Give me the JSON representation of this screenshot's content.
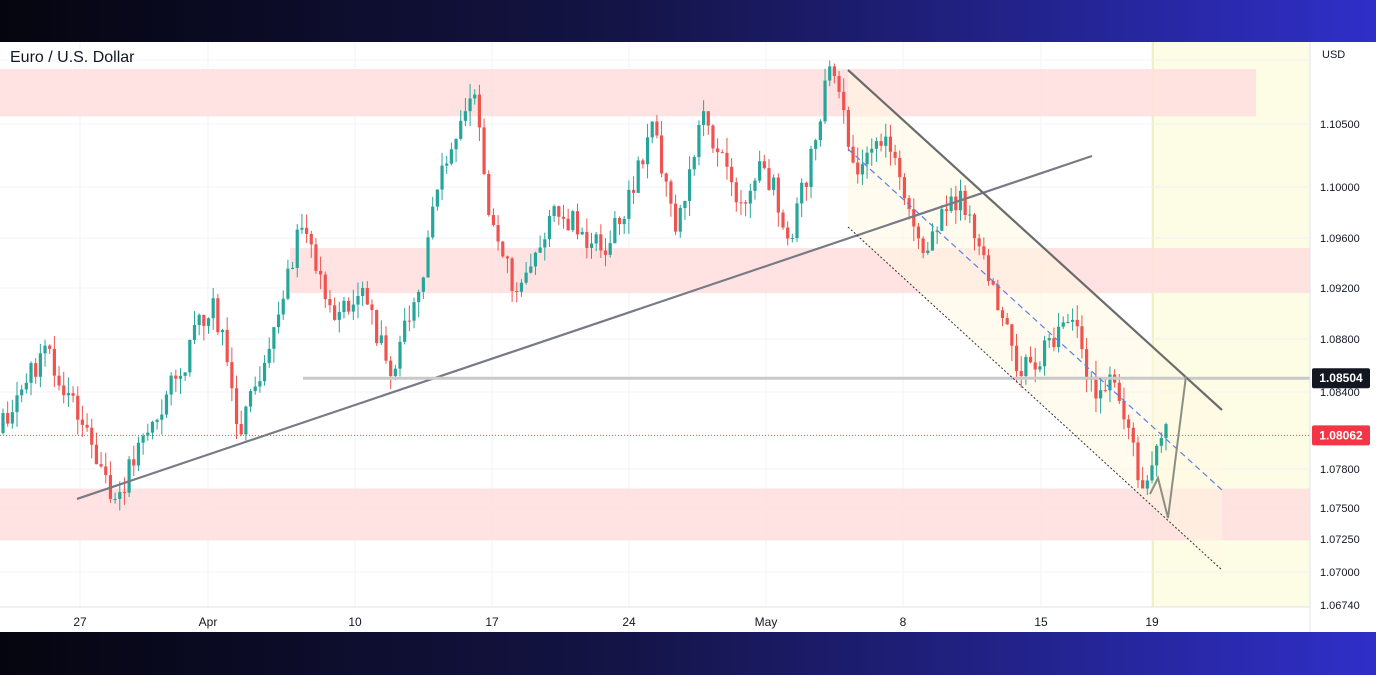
{
  "header": {
    "title": "Euro / U.S. Dollar",
    "currency": "USD"
  },
  "chart_data": {
    "type": "candlestick",
    "title": "Euro / U.S. Dollar",
    "y_unit": "USD",
    "ylim": [
      1.0674,
      1.1118
    ],
    "y_ticks": [
      "1.10500",
      "1.10000",
      "1.09600",
      "1.09200",
      "1.08800",
      "1.08400",
      "1.07800",
      "1.07500",
      "1.07250",
      "1.07000",
      "1.06740"
    ],
    "x_ticks": [
      "27",
      "Apr",
      "10",
      "17",
      "24",
      "May",
      "8",
      "15",
      "19"
    ],
    "current_price": "1.08062",
    "marked_level": "1.08504",
    "colors": {
      "up": "#26a69a",
      "down": "#ef5350",
      "zone": "#ffdede",
      "forecast": "#fdfde6",
      "channel": "#808080"
    },
    "zones": [
      {
        "from": 1.1056,
        "to": 1.1093
      },
      {
        "from": 1.0916,
        "to": 1.0952
      },
      {
        "from": 1.0724,
        "to": 1.0765
      }
    ],
    "candle_sets": [
      {
        "from": 1.0808,
        "to": 1.0875,
        "n": 10,
        "seed": 11
      },
      {
        "from": 1.0875,
        "to": 1.0782,
        "n": 12,
        "seed": 12
      },
      {
        "from": 1.0782,
        "to": 1.0757,
        "n": 3,
        "seed": 13
      },
      {
        "from": 1.0757,
        "to": 1.085,
        "n": 13,
        "seed": 14
      },
      {
        "from": 1.085,
        "to": 1.0912,
        "n": 8,
        "seed": 15
      },
      {
        "from": 1.0912,
        "to": 1.0807,
        "n": 6,
        "seed": 16
      },
      {
        "from": 1.0807,
        "to": 1.0968,
        "n": 13,
        "seed": 17
      },
      {
        "from": 1.0968,
        "to": 1.0895,
        "n": 7,
        "seed": 18
      },
      {
        "from": 1.0895,
        "to": 1.092,
        "n": 6,
        "seed": 19
      },
      {
        "from": 1.092,
        "to": 1.0852,
        "n": 6,
        "seed": 20
      },
      {
        "from": 1.0852,
        "to": 1.0917,
        "n": 6,
        "seed": 21
      },
      {
        "from": 1.0917,
        "to": 1.0998,
        "n": 4,
        "seed": 22
      },
      {
        "from": 1.0998,
        "to": 1.1073,
        "n": 8,
        "seed": 23
      },
      {
        "from": 1.1073,
        "to": 1.0978,
        "n": 3,
        "seed": 24
      },
      {
        "from": 1.0978,
        "to": 1.0917,
        "n": 6,
        "seed": 25
      },
      {
        "from": 1.0917,
        "to": 1.0985,
        "n": 8,
        "seed": 26
      },
      {
        "from": 1.0985,
        "to": 1.095,
        "n": 10,
        "seed": 27
      },
      {
        "from": 1.095,
        "to": 1.0975,
        "n": 5,
        "seed": 28
      },
      {
        "from": 1.0975,
        "to": 1.1052,
        "n": 6,
        "seed": 29
      },
      {
        "from": 1.1052,
        "to": 1.0965,
        "n": 5,
        "seed": 30
      },
      {
        "from": 1.0965,
        "to": 1.106,
        "n": 6,
        "seed": 31
      },
      {
        "from": 1.106,
        "to": 1.0988,
        "n": 7,
        "seed": 32
      },
      {
        "from": 1.0988,
        "to": 1.1015,
        "n": 6,
        "seed": 33
      },
      {
        "from": 1.1015,
        "to": 1.096,
        "n": 6,
        "seed": 34
      },
      {
        "from": 1.096,
        "to": 1.1095,
        "n": 8,
        "seed": 35
      },
      {
        "from": 1.1095,
        "to": 1.101,
        "n": 6,
        "seed": 36
      },
      {
        "from": 1.101,
        "to": 1.104,
        "n": 6,
        "seed": 37
      },
      {
        "from": 1.104,
        "to": 1.0948,
        "n": 8,
        "seed": 38
      },
      {
        "from": 1.0948,
        "to": 1.0997,
        "n": 8,
        "seed": 39
      },
      {
        "from": 1.0997,
        "to": 1.0852,
        "n": 13,
        "seed": 40
      },
      {
        "from": 1.0852,
        "to": 1.0895,
        "n": 11,
        "seed": 41
      },
      {
        "from": 1.0895,
        "to": 1.0835,
        "n": 5,
        "seed": 42
      },
      {
        "from": 1.0835,
        "to": 1.0847,
        "n": 4,
        "seed": 43
      },
      {
        "from": 1.0847,
        "to": 1.0765,
        "n": 6,
        "seed": 44
      },
      {
        "from": 1.0765,
        "to": 1.0815,
        "n": 5,
        "seed": 45
      }
    ],
    "annotations": {
      "uptrend_line": [
        [
          1.0757,
          0
        ],
        [
          1.102,
          1
        ]
      ],
      "resistance_line": "1.08504",
      "descending_channel": "upper, middle dashed and lower boundary lines",
      "forecast_path": "down to the lower boundary, then up to 1.08504"
    }
  }
}
